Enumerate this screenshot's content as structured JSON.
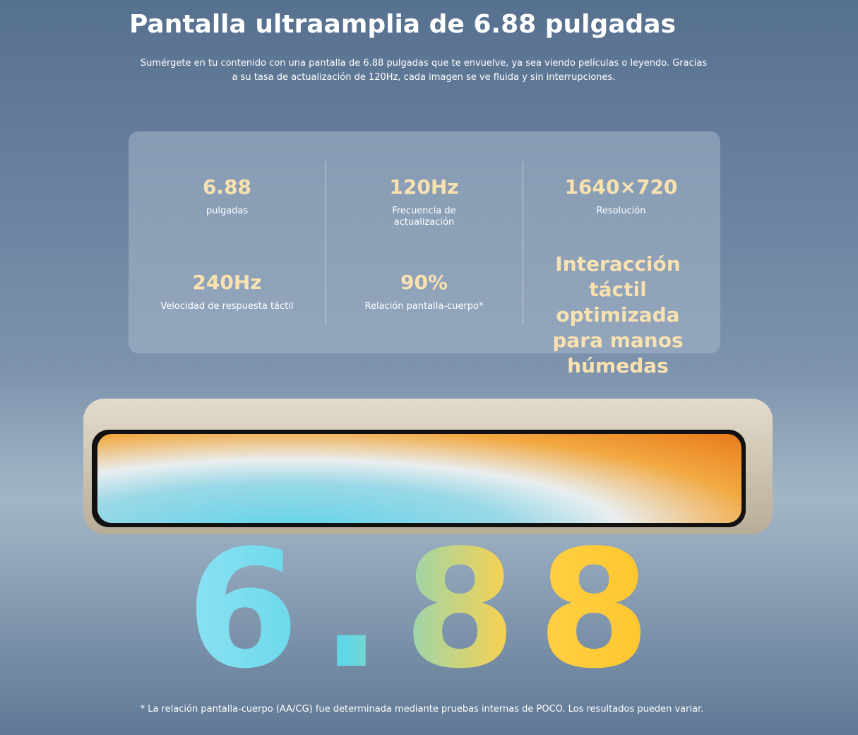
{
  "header": {
    "title": "Pantalla ultraamplia de 6.88 pulgadas",
    "subtitle": "Sumérgete en tu contenido con una pantalla de 6.88 pulgadas que te envuelve, ya sea viendo películas o leyendo. Gracias a su tasa de actualización de 120Hz, cada imagen se ve fluida y sin interrupciones."
  },
  "specs": [
    {
      "value": "6.88",
      "label": "pulgadas"
    },
    {
      "value": "120Hz",
      "label": "Frecuencia de actualización"
    },
    {
      "value": "1640×720",
      "label": "Resolución"
    },
    {
      "value": "240Hz",
      "label": "Velocidad de respuesta táctil"
    },
    {
      "value": "90%",
      "label": "Relación pantalla-cuerpo*"
    },
    {
      "value": "Interacción táctil optimizada para manos húmedas"
    }
  ],
  "hero": {
    "big_number": "6.88"
  },
  "footnote": "* La relación pantalla-cuerpo (AA/CG) fue determinada mediante pruebas internas de POCO. Los resultados pueden variar."
}
